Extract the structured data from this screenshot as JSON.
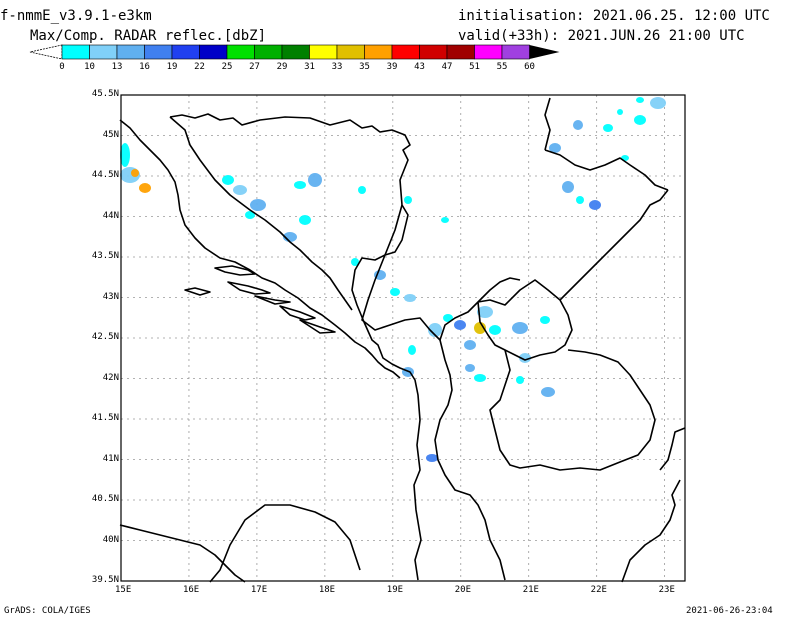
{
  "header": {
    "model": "f-nmmE_v3.9.1-e3km",
    "field": "Max/Comp. RADAR reflec.[dbZ]",
    "init": "initialisation: 2021.06.25. 12:00 UTC",
    "valid": "valid(+33h): 2021.JUN.26 21:00 UTC"
  },
  "footer": {
    "left": "GrADS: COLA/IGES",
    "right": "2021-06-26-23:04"
  },
  "colorbar": {
    "levels": [
      "0",
      "10",
      "13",
      "16",
      "19",
      "22",
      "25",
      "27",
      "29",
      "31",
      "33",
      "35",
      "39",
      "43",
      "47",
      "51",
      "55",
      "60"
    ],
    "colors": [
      "#00ffff",
      "#80d0f8",
      "#60b0f0",
      "#4080f0",
      "#2040f0",
      "#0000c8",
      "#00e000",
      "#00b000",
      "#008000",
      "#ffff00",
      "#e0c000",
      "#ffa000",
      "#ff0000",
      "#d00000",
      "#a00000",
      "#ff00ff",
      "#a040e0"
    ],
    "end_color": "#000000"
  },
  "map": {
    "lon_ticks": [
      "15E",
      "16E",
      "17E",
      "18E",
      "19E",
      "20E",
      "21E",
      "22E",
      "23E"
    ],
    "lat_ticks": [
      "45.5N",
      "45N",
      "44.5N",
      "44N",
      "43.5N",
      "43N",
      "42.5N",
      "42N",
      "41.5N",
      "41N",
      "40.5N",
      "40N",
      "39.5N"
    ],
    "lon_range": [
      15,
      23.3
    ],
    "lat_range": [
      39.5,
      45.5
    ]
  }
}
